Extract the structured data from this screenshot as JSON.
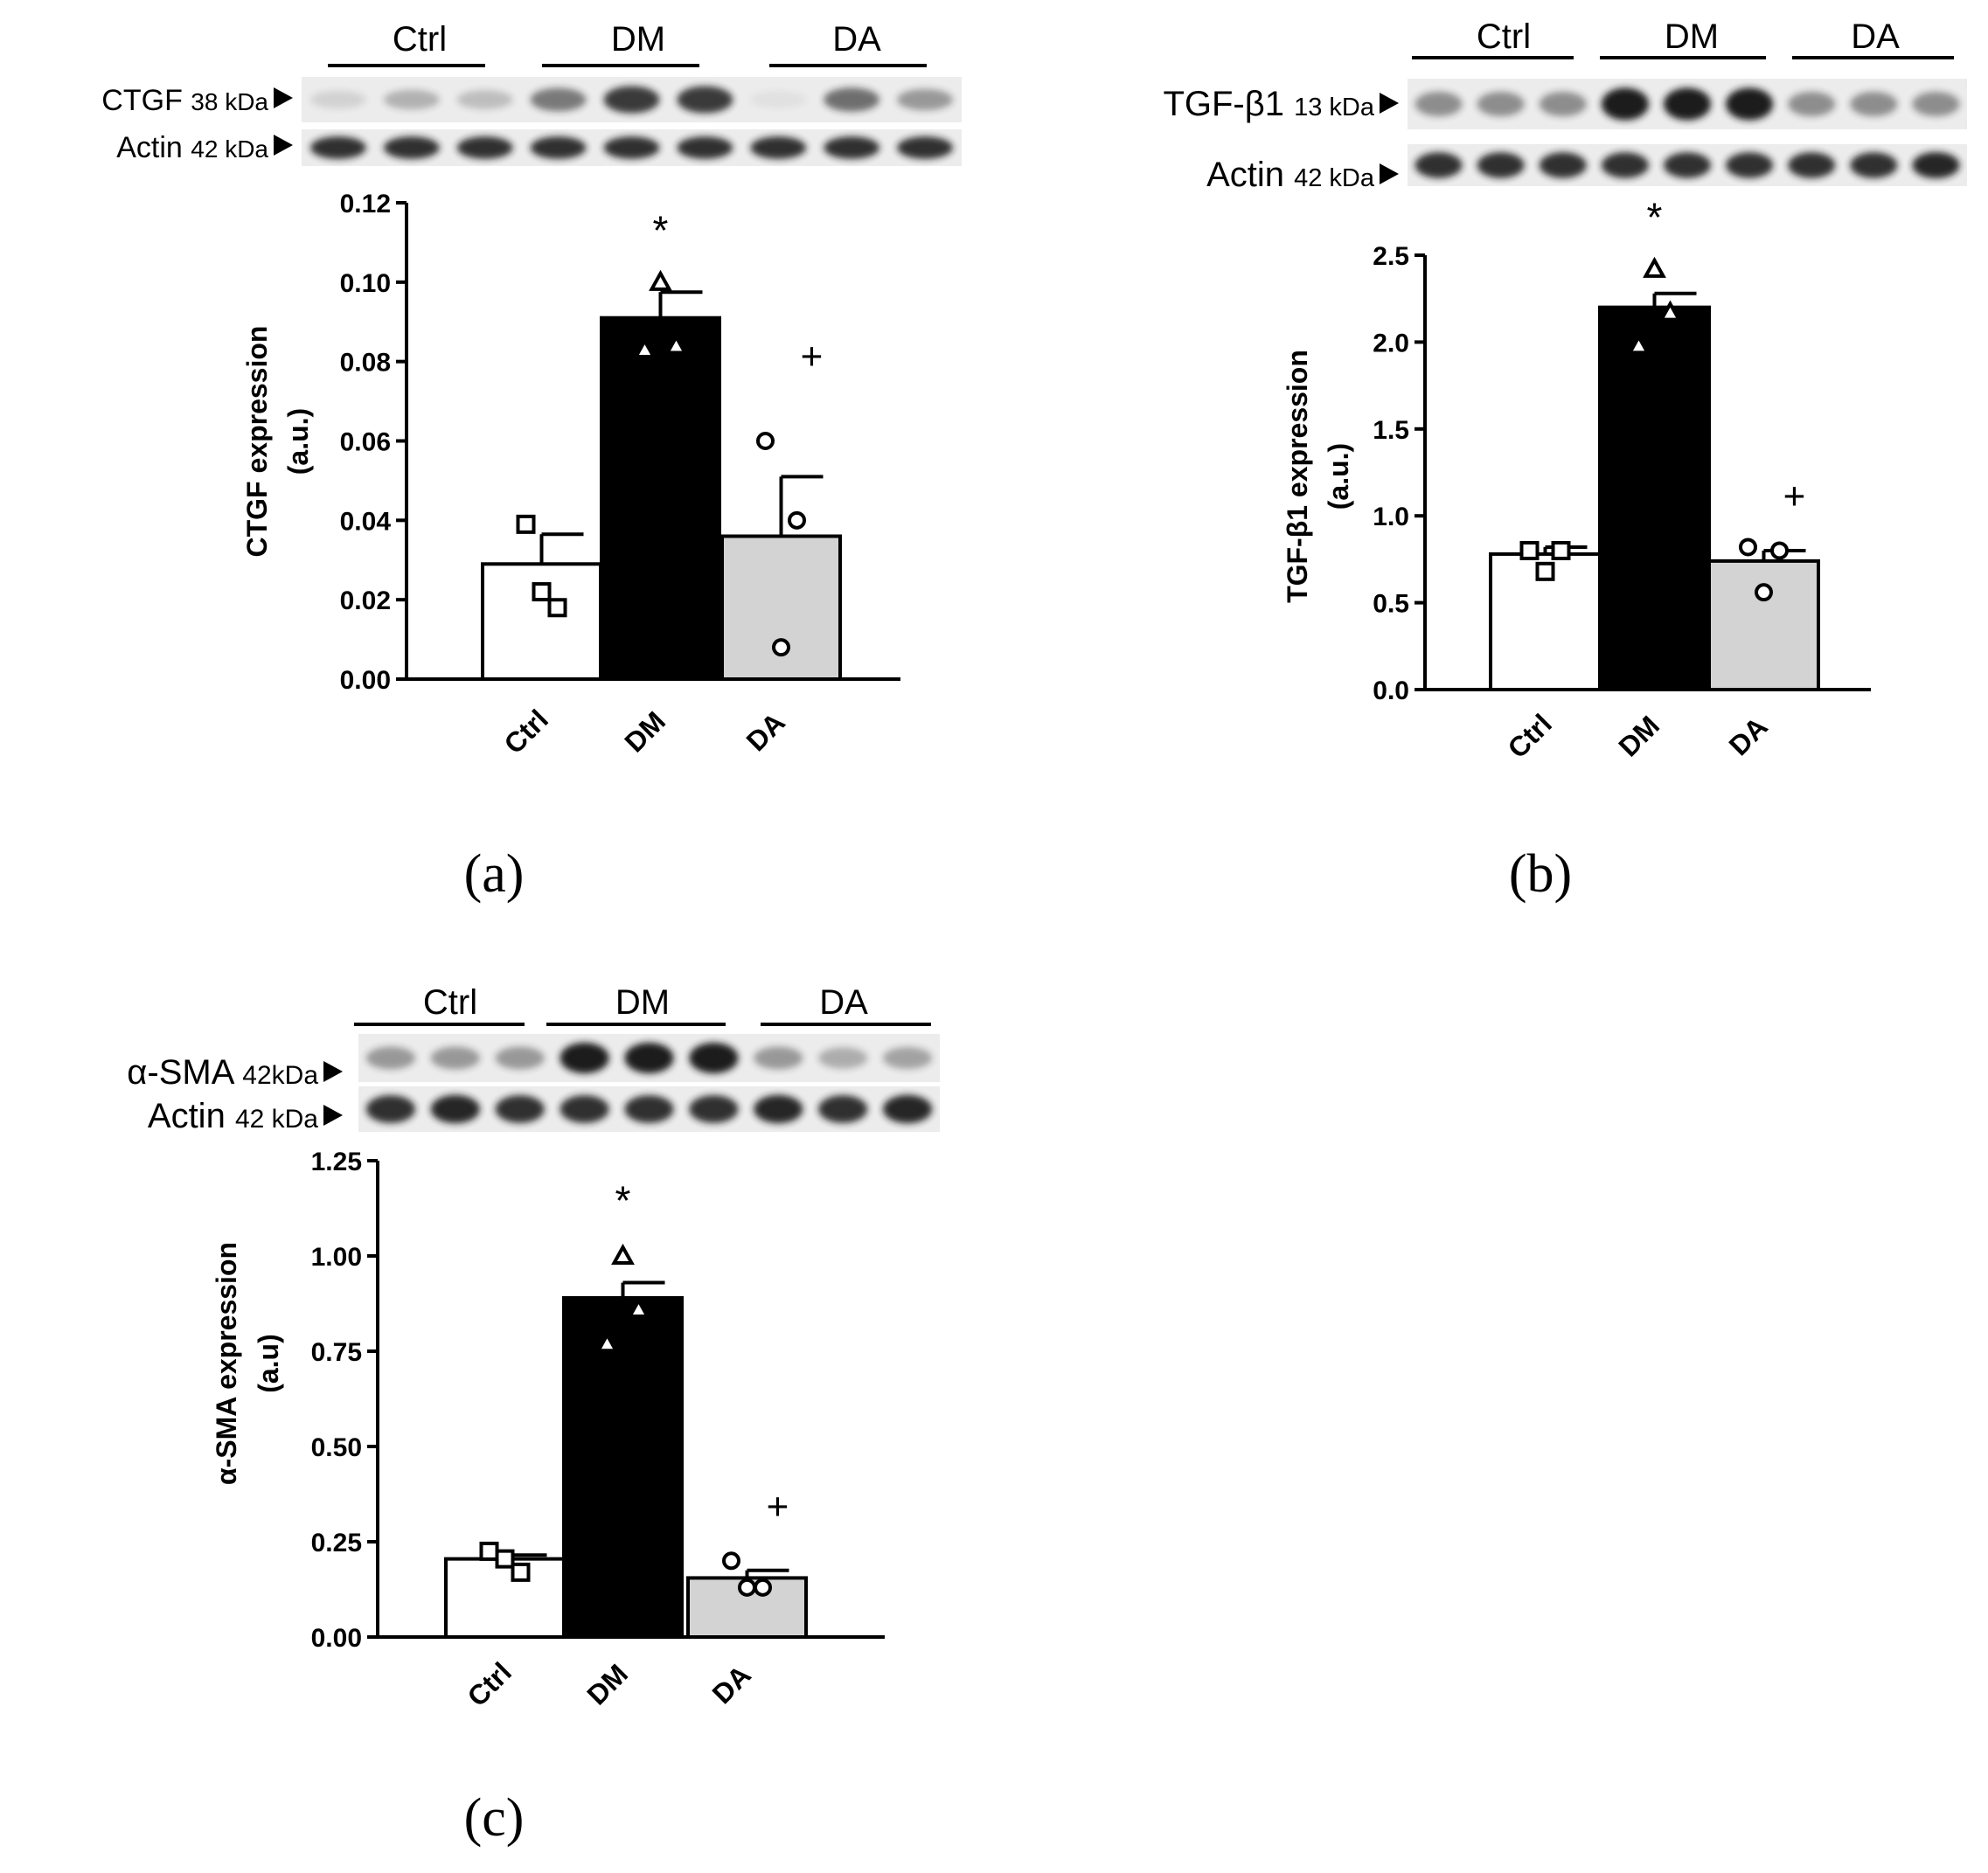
{
  "panel_labels": [
    "(a)",
    "(b)",
    "(c)"
  ],
  "group_headers": [
    "Ctrl",
    "DM",
    "DA"
  ],
  "colors": {
    "ctrl": "#ffffff",
    "dm": "#000000",
    "da": "#d3d3d3",
    "blot_band": "#1a1a1a"
  },
  "blots": [
    {
      "protein_name": "CTGF",
      "protein_kda": "38 kDa",
      "actin_name": "Actin",
      "actin_kda": "42 kDa",
      "protein_band_intensity": [
        0.12,
        0.28,
        0.22,
        0.55,
        0.85,
        0.85,
        0.04,
        0.6,
        0.4
      ],
      "actin_band_intensity": [
        0.9,
        0.9,
        0.9,
        0.9,
        0.9,
        0.9,
        0.9,
        0.9,
        0.9
      ]
    },
    {
      "protein_name": "TGF-β1",
      "protein_kda": "13 kDa",
      "actin_name": "Actin",
      "actin_kda": "42 kDa",
      "protein_band_intensity": [
        0.45,
        0.45,
        0.45,
        1.0,
        1.0,
        1.0,
        0.45,
        0.45,
        0.45
      ],
      "actin_band_intensity": [
        0.9,
        0.9,
        0.9,
        0.9,
        0.9,
        0.9,
        0.9,
        0.9,
        0.95
      ]
    },
    {
      "protein_name": "α-SMA",
      "protein_kda": "42kDa",
      "actin_name": "Actin",
      "actin_kda": "42 kDa",
      "protein_band_intensity": [
        0.4,
        0.4,
        0.4,
        1.0,
        1.0,
        1.0,
        0.4,
        0.3,
        0.35
      ],
      "actin_band_intensity": [
        0.9,
        0.95,
        0.9,
        0.9,
        0.9,
        0.9,
        0.95,
        0.9,
        0.95
      ]
    }
  ],
  "chart_data": [
    {
      "type": "bar",
      "categories": [
        "Ctrl",
        "DM",
        "DA"
      ],
      "values": [
        0.029,
        0.091,
        0.036
      ],
      "errors": [
        0.0075,
        0.0065,
        0.015
      ],
      "points": [
        [
          0.039,
          0.018,
          0.022
        ],
        [
          0.083,
          0.084,
          0.1
        ],
        [
          0.06,
          0.04,
          0.008
        ]
      ],
      "markers": [
        "square",
        "triangle",
        "circle"
      ],
      "ylabel": "CTGF expression",
      "ylabel2": "(a.u.)",
      "ylim": [
        0,
        0.12
      ],
      "yticks": [
        "0.00",
        "0.02",
        "0.04",
        "0.06",
        "0.08",
        "0.10",
        "0.12"
      ],
      "annotations": [
        {
          "text": "*",
          "category": "DM",
          "value": 0.1135
        },
        {
          "text": "+",
          "category": "DA",
          "value": 0.082
        }
      ]
    },
    {
      "type": "bar",
      "categories": [
        "Ctrl",
        "DM",
        "DA"
      ],
      "values": [
        0.78,
        2.2,
        0.74
      ],
      "errors": [
        0.04,
        0.08,
        0.06
      ],
      "points": [
        [
          0.8,
          0.8,
          0.68
        ],
        [
          1.98,
          2.17,
          2.42
        ],
        [
          0.82,
          0.8,
          0.56
        ]
      ],
      "markers": [
        "square",
        "triangle",
        "circle"
      ],
      "ylabel": "TGF-β1 expression",
      "ylabel2": "(a.u.)",
      "ylim": [
        0,
        2.5
      ],
      "yticks": [
        "0.0",
        "0.5",
        "1.0",
        "1.5",
        "2.0",
        "2.5"
      ],
      "annotations": [
        {
          "text": "*",
          "category": "DM",
          "value": 2.73
        },
        {
          "text": "+",
          "category": "DA",
          "value": 1.13
        }
      ]
    },
    {
      "type": "bar",
      "categories": [
        "Ctrl",
        "DM",
        "DA"
      ],
      "values": [
        0.205,
        0.89,
        0.155
      ],
      "errors": [
        0.01,
        0.04,
        0.02
      ],
      "points": [
        [
          0.225,
          0.17,
          0.205
        ],
        [
          0.77,
          0.86,
          1.0
        ],
        [
          0.2,
          0.13,
          0.13
        ]
      ],
      "markers": [
        "square",
        "triangle",
        "circle"
      ],
      "ylabel": "α-SMA expression",
      "ylabel2": "(a.u)",
      "ylim": [
        0,
        1.25
      ],
      "yticks": [
        "0.00",
        "0.25",
        "0.50",
        "0.75",
        "1.00",
        "1.25"
      ],
      "annotations": [
        {
          "text": "*",
          "category": "DM",
          "value": 1.15
        },
        {
          "text": "+",
          "category": "DA",
          "value": 0.35
        }
      ]
    }
  ]
}
